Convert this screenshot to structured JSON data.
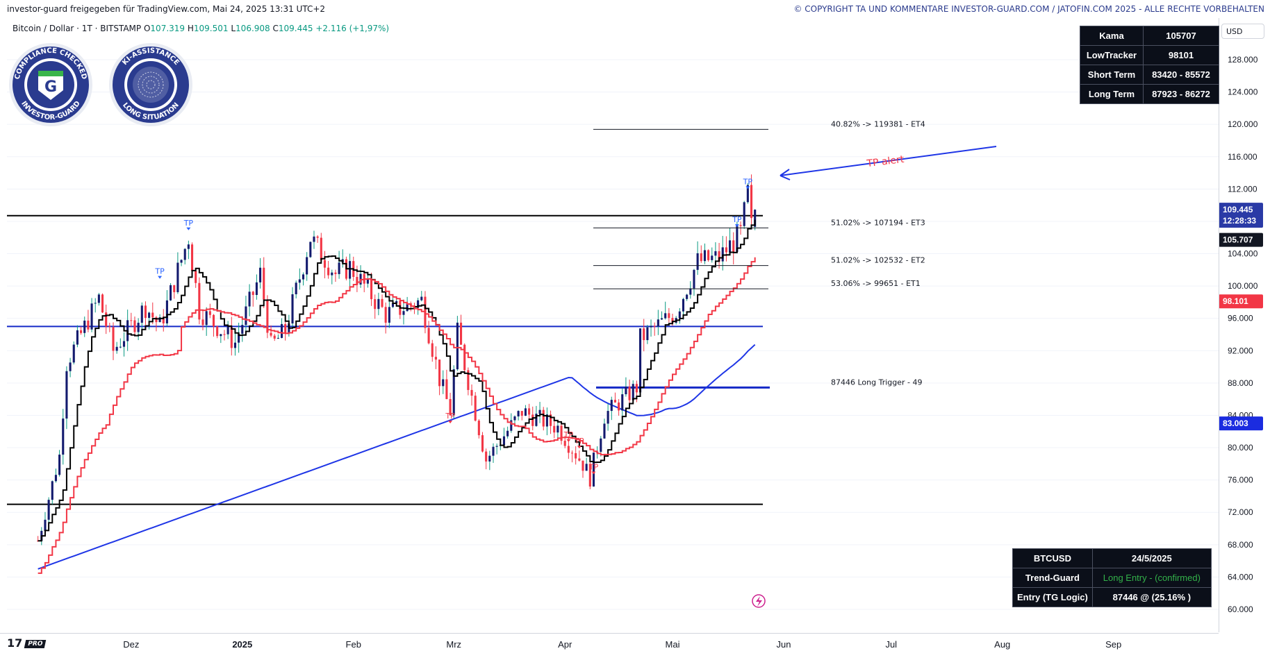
{
  "header": {
    "left_text": "investor-guard freigegeben für TradingView.com, Mai 24, 2025 13:31 UTC+2",
    "right_text": "© COPYRIGHT TA UND KOMMENTARE INVESTOR-GUARD.COM / JATOFIN.COM 2025 - ALLE RECHTE VORBEHALTEN"
  },
  "legend": {
    "symbol": "Bitcoin / Dollar · 1T · BITSTAMP",
    "o_label": "O",
    "o": "107.319",
    "h_label": "H",
    "h": "109.501",
    "l_label": "L",
    "l": "106.908",
    "c_label": "C",
    "c": "109.445",
    "change": "+2.116 (+1,97%)"
  },
  "badges": {
    "left_text_top": "COMPLIANCE CHECKED",
    "left_text_bottom": "INVESTOR-GUARD",
    "left_letter": "G",
    "right_text_top": "KI-ASSISTANCE",
    "right_text_bottom": "LONG SITUATION"
  },
  "currency_button": "USD",
  "top_table": [
    [
      "Kama",
      "105707"
    ],
    [
      "LowTracker",
      "98101"
    ],
    [
      "Short Term",
      "83420 - 85572"
    ],
    [
      "Long Term",
      "87923 - 86272"
    ]
  ],
  "bottom_table": [
    [
      "BTCUSD",
      "24/5/2025"
    ],
    [
      "Trend-Guard",
      "Long Entry - (confirmed)"
    ],
    [
      "Entry (TG Logic)",
      "87446 @ (25.16% )"
    ]
  ],
  "colors": {
    "up": "#089981",
    "down": "#f23645",
    "candle_up_body": "#131a6e",
    "candle_down_body": "#f23645",
    "kama": "#000000",
    "lowtracker": "#f23645",
    "ma": "#1e35e6",
    "level_blue": "#1429c7",
    "price_tag": "#2a3aa6",
    "kama_tag": "#131722",
    "low_tag": "#f23645",
    "ma_tag": "#1b2ce0",
    "green_text": "#33b24a"
  },
  "chart_data": {
    "type": "candlestick",
    "y_axis_ticks": [
      "128.000",
      "124.000",
      "120.000",
      "116.000",
      "112.000",
      "108.000",
      "104.000",
      "100.000",
      "96.000",
      "92.000",
      "88.000",
      "84.000",
      "80.000",
      "76.000",
      "72.000",
      "68.000",
      "64.000",
      "60.000"
    ],
    "ylim": [
      59500,
      131500
    ],
    "x_axis_ticks": [
      "Dez",
      "2025",
      "Feb",
      "Mrz",
      "Apr",
      "Mai",
      "Jun",
      "Jul",
      "Aug",
      "Sep"
    ],
    "price_labels": {
      "last_price": "109.445",
      "countdown": "12:28:33",
      "kama": "105.707",
      "lowtracker": "98.101",
      "ma": "83.003"
    },
    "close_series_anchors": [
      [
        "2024-11-05",
        68500
      ],
      [
        "2024-11-11",
        79000
      ],
      [
        "2024-11-13",
        90500
      ],
      [
        "2024-11-22",
        98500
      ],
      [
        "2024-11-26",
        92000
      ],
      [
        "2024-12-05",
        97500
      ],
      [
        "2024-12-09",
        95000
      ],
      [
        "2024-12-17",
        106000
      ],
      [
        "2024-12-20",
        97000
      ],
      [
        "2024-12-30",
        93000
      ],
      [
        "2025-01-06",
        101500
      ],
      [
        "2025-01-09",
        92500
      ],
      [
        "2025-01-13",
        94500
      ],
      [
        "2025-01-20",
        106000
      ],
      [
        "2025-01-27",
        101500
      ],
      [
        "2025-01-31",
        102400
      ],
      [
        "2025-02-10",
        96500
      ],
      [
        "2025-02-20",
        98200
      ],
      [
        "2025-02-25",
        88500
      ],
      [
        "2025-02-28",
        84500
      ],
      [
        "2025-03-02",
        94200
      ],
      [
        "2025-03-10",
        78500
      ],
      [
        "2025-03-20",
        84500
      ],
      [
        "2025-03-30",
        82500
      ],
      [
        "2025-04-06",
        78000
      ],
      [
        "2025-04-08",
        76300
      ],
      [
        "2025-04-12",
        84000
      ],
      [
        "2025-04-21",
        87500
      ],
      [
        "2025-04-22",
        93500
      ],
      [
        "2025-05-02",
        96800
      ],
      [
        "2025-05-08",
        103000
      ],
      [
        "2025-05-14",
        103500
      ],
      [
        "2025-05-20",
        106500
      ],
      [
        "2025-05-22",
        111500
      ],
      [
        "2025-05-23",
        107300
      ],
      [
        "2025-05-24",
        109445
      ]
    ],
    "horizontal_levels": [
      {
        "name": "resistance",
        "value": 108700,
        "color": "black"
      },
      {
        "name": "support-blue",
        "value": 95000,
        "color": "blue"
      },
      {
        "name": "long-trigger",
        "value": 87446,
        "color": "blue"
      },
      {
        "name": "support-black",
        "value": 73000,
        "color": "black"
      }
    ],
    "target_levels": [
      {
        "label": "40.82% -> 119381 - ET4",
        "value": 119381
      },
      {
        "label": "51.02% -> 107194 - ET3",
        "value": 107194
      },
      {
        "label": "51.02% -> 102532 - ET2",
        "value": 102532
      },
      {
        "label": "53.06% -> 99651 - ET1",
        "value": 99651
      }
    ],
    "long_trigger_label": "87446  Long Trigger - 49",
    "annotation": "TP alert",
    "tp_markers": [
      {
        "text": "TP",
        "date": "2024-12-17",
        "y": 107500,
        "color": "blue"
      },
      {
        "text": "TP",
        "date": "2024-12-09",
        "y": 101500,
        "color": "blue"
      },
      {
        "text": "TP",
        "date": "2025-05-22",
        "y": 112600,
        "color": "blue"
      },
      {
        "text": "TP",
        "date": "2025-05-19",
        "y": 107900,
        "color": "blue"
      },
      {
        "text": "TP",
        "date": "2025-02-28",
        "y": 83600,
        "color": "red"
      },
      {
        "text": "TP",
        "date": "2025-04-02",
        "y": 81300,
        "color": "red"
      },
      {
        "text": "TP",
        "date": "2025-04-05",
        "y": 80500,
        "color": "red"
      },
      {
        "text": "TP",
        "date": "2025-04-09",
        "y": 77300,
        "color": "red"
      }
    ]
  }
}
